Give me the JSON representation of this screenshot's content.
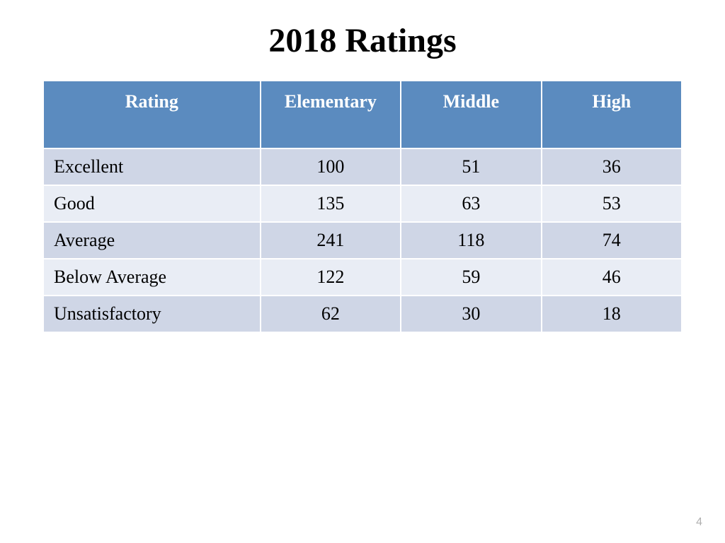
{
  "title": "2018 Ratings",
  "page_number": "4",
  "table": {
    "type": "table",
    "header_bg": "#5b8bbf",
    "header_text_color": "#ffffff",
    "row_bg_odd": "#cfd6e6",
    "row_bg_even": "#e9edf5",
    "border_color": "#ffffff",
    "title_fontsize": 48,
    "header_fontsize": 26,
    "cell_fontsize": 26,
    "columns": [
      "Rating",
      "Elementary",
      "Middle",
      "High"
    ],
    "column_widths_pct": [
      34,
      22,
      22,
      22
    ],
    "column_align": [
      "left",
      "center",
      "center",
      "center"
    ],
    "rows": [
      [
        "Excellent",
        100,
        51,
        36
      ],
      [
        "Good",
        135,
        63,
        53
      ],
      [
        "Average",
        241,
        118,
        74
      ],
      [
        "Below Average",
        122,
        59,
        46
      ],
      [
        "Unsatisfactory",
        62,
        30,
        18
      ]
    ]
  }
}
